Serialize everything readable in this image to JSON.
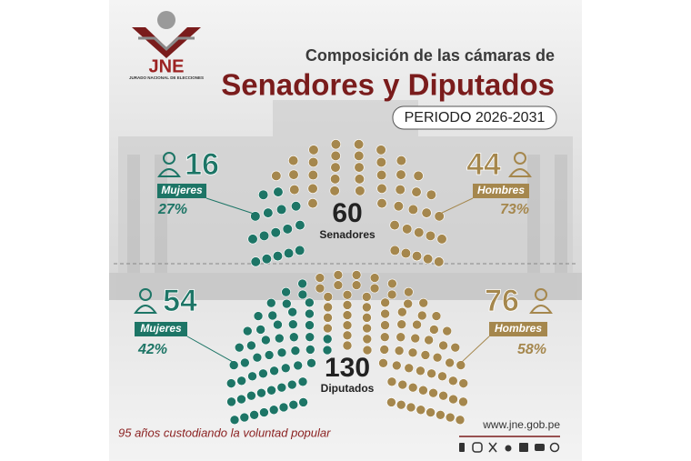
{
  "header": {
    "logo": "JNE",
    "logo_caption": "JURADO NACIONAL DE ELECCIONES",
    "title": "Composición de las cámaras de",
    "subtitle": "Senadores y Diputados",
    "period": "PERIODO 2026-2031"
  },
  "chart_data": [
    {
      "type": "parliament",
      "total": 60,
      "total_label": "Senadores",
      "series": [
        {
          "name": "Mujeres",
          "color": "#1d7566",
          "values": [
            16
          ],
          "share": "27%"
        },
        {
          "name": "Hombres",
          "color": "#a5874d",
          "values": [
            44
          ],
          "share": "73%"
        }
      ]
    },
    {
      "type": "parliament",
      "total": 130,
      "total_label": "Diputados",
      "series": [
        {
          "name": "Mujeres",
          "color": "#1d7566",
          "values": [
            54
          ],
          "share": "42%"
        },
        {
          "name": "Hombres",
          "color": "#a5874d",
          "values": [
            76
          ],
          "share": "58%"
        }
      ]
    }
  ],
  "footer": {
    "slogan": "95 años custodiando la voluntad popular",
    "website": "www.jne.gob.pe"
  }
}
